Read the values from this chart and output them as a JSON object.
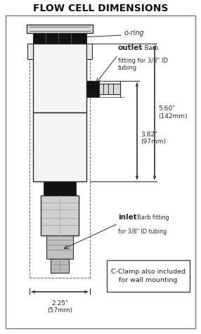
{
  "title": "FLOW CELL DIMENSIONS",
  "title_fontsize": 10,
  "title_fontweight": "bold",
  "bg_color": "#ffffff",
  "draw_color": "#2a2a2a",
  "label_outlet_bold": "outlet",
  "label_outlet_small": "- Barb\nfitting for 3/8\" ID\ntubing",
  "label_oring": "o-ring",
  "label_inlet_bold": "inlet",
  "label_inlet_small": "- Barb fitting\nfor 3/8\" ID tubing",
  "dim1_label": "5.60\"\n(142mm)",
  "dim2_label": "3.82\"\n(97mm)",
  "dim3_label": "2.25\"\n(57mm)",
  "cclamp_label": "C-Clamp also included\nfor wall mounting",
  "fig_width": 2.86,
  "fig_height": 4.75,
  "dpi": 100
}
